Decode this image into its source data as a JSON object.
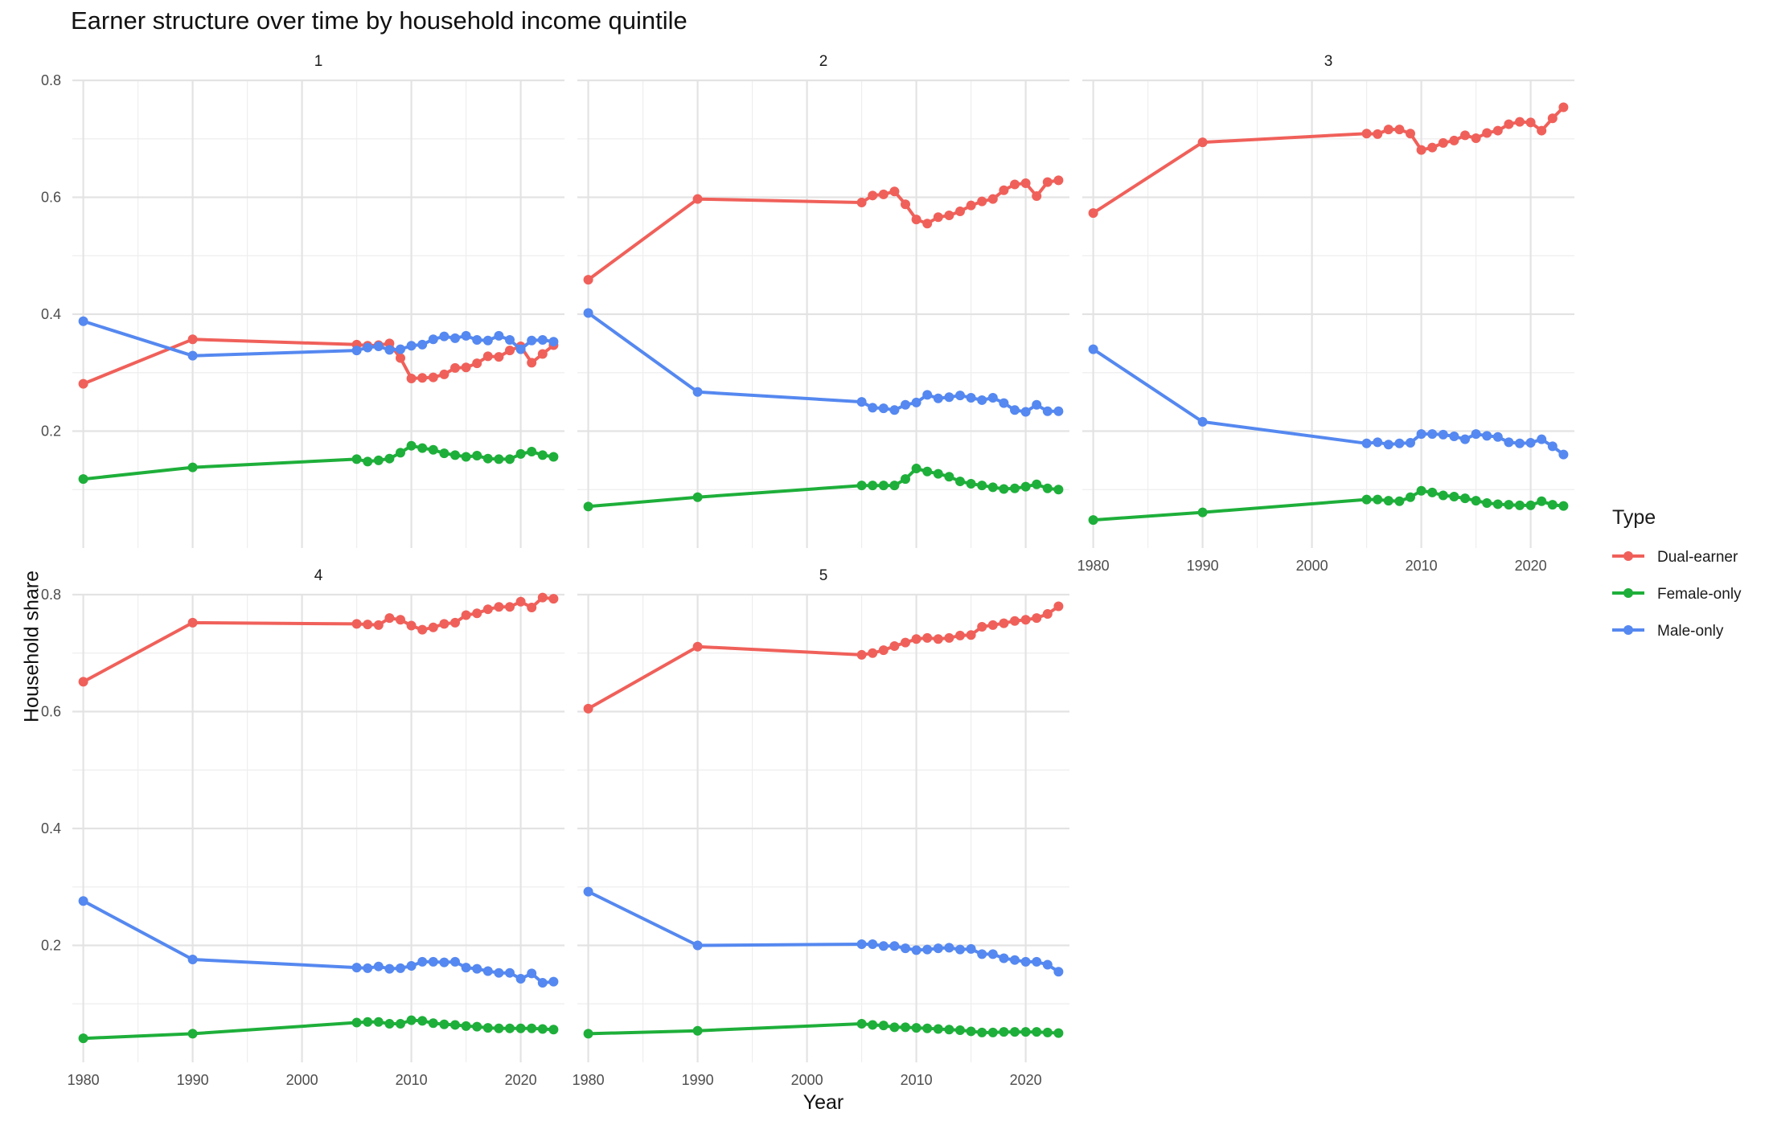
{
  "chart_data": {
    "type": "line",
    "title": "Earner structure over time by household income quintile",
    "xlabel": "Year",
    "ylabel": "Household share",
    "xlim": [
      1979,
      2024
    ],
    "ylim": [
      0.0,
      0.8
    ],
    "x_ticks": [
      1980,
      1990,
      2000,
      2010,
      2020
    ],
    "y_ticks": [
      0.2,
      0.4,
      0.6,
      0.8
    ],
    "grid": true,
    "legend": {
      "title": "Type",
      "position": "right"
    },
    "colors": {
      "Dual-earner": "#F0605A",
      "Female-only": "#1EAF3A",
      "Male-only": "#5588F0"
    },
    "years": [
      1980,
      1990,
      2005,
      2006,
      2007,
      2008,
      2009,
      2010,
      2011,
      2012,
      2013,
      2014,
      2015,
      2016,
      2017,
      2018,
      2019,
      2020,
      2021,
      2022,
      2023
    ],
    "panels": [
      {
        "label": "1",
        "series": [
          {
            "name": "Dual-earner",
            "values": [
              0.281,
              0.357,
              0.348,
              0.346,
              0.347,
              0.35,
              0.325,
              0.29,
              0.291,
              0.292,
              0.297,
              0.308,
              0.309,
              0.316,
              0.328,
              0.327,
              0.338,
              0.345,
              0.317,
              0.332,
              0.347
            ]
          },
          {
            "name": "Female-only",
            "values": [
              0.118,
              0.138,
              0.152,
              0.148,
              0.15,
              0.153,
              0.163,
              0.175,
              0.171,
              0.168,
              0.162,
              0.159,
              0.156,
              0.158,
              0.153,
              0.152,
              0.152,
              0.161,
              0.165,
              0.159,
              0.156
            ]
          },
          {
            "name": "Male-only",
            "values": [
              0.388,
              0.329,
              0.338,
              0.343,
              0.345,
              0.339,
              0.34,
              0.346,
              0.348,
              0.357,
              0.362,
              0.359,
              0.363,
              0.356,
              0.355,
              0.363,
              0.356,
              0.34,
              0.355,
              0.356,
              0.353
            ]
          }
        ]
      },
      {
        "label": "2",
        "series": [
          {
            "name": "Dual-earner",
            "values": [
              0.459,
              0.597,
              0.591,
              0.603,
              0.605,
              0.61,
              0.588,
              0.562,
              0.555,
              0.566,
              0.569,
              0.576,
              0.586,
              0.593,
              0.597,
              0.612,
              0.622,
              0.624,
              0.602,
              0.626,
              0.629
            ]
          },
          {
            "name": "Female-only",
            "values": [
              0.071,
              0.087,
              0.107,
              0.107,
              0.107,
              0.107,
              0.118,
              0.136,
              0.131,
              0.127,
              0.122,
              0.114,
              0.11,
              0.107,
              0.104,
              0.101,
              0.102,
              0.105,
              0.109,
              0.102,
              0.1
            ]
          },
          {
            "name": "Male-only",
            "values": [
              0.402,
              0.267,
              0.25,
              0.24,
              0.239,
              0.236,
              0.245,
              0.249,
              0.262,
              0.256,
              0.258,
              0.261,
              0.257,
              0.253,
              0.257,
              0.248,
              0.236,
              0.233,
              0.245,
              0.234,
              0.234
            ]
          }
        ]
      },
      {
        "label": "3",
        "series": [
          {
            "name": "Dual-earner",
            "values": [
              0.573,
              0.694,
              0.709,
              0.708,
              0.716,
              0.716,
              0.709,
              0.681,
              0.685,
              0.693,
              0.697,
              0.706,
              0.701,
              0.71,
              0.714,
              0.725,
              0.729,
              0.728,
              0.714,
              0.735,
              0.754
            ]
          },
          {
            "name": "Female-only",
            "values": [
              0.048,
              0.061,
              0.083,
              0.083,
              0.081,
              0.08,
              0.087,
              0.098,
              0.095,
              0.09,
              0.088,
              0.085,
              0.081,
              0.077,
              0.075,
              0.074,
              0.073,
              0.073,
              0.08,
              0.074,
              0.072
            ]
          },
          {
            "name": "Male-only",
            "values": [
              0.34,
              0.216,
              0.179,
              0.181,
              0.177,
              0.179,
              0.18,
              0.195,
              0.195,
              0.194,
              0.191,
              0.186,
              0.195,
              0.192,
              0.19,
              0.181,
              0.179,
              0.18,
              0.186,
              0.174,
              0.16
            ]
          }
        ]
      },
      {
        "label": "4",
        "series": [
          {
            "name": "Dual-earner",
            "values": [
              0.651,
              0.752,
              0.75,
              0.749,
              0.748,
              0.76,
              0.757,
              0.747,
              0.74,
              0.744,
              0.75,
              0.752,
              0.765,
              0.768,
              0.775,
              0.779,
              0.779,
              0.788,
              0.778,
              0.795,
              0.793
            ]
          },
          {
            "name": "Female-only",
            "values": [
              0.041,
              0.049,
              0.068,
              0.069,
              0.069,
              0.066,
              0.066,
              0.072,
              0.071,
              0.067,
              0.065,
              0.064,
              0.062,
              0.061,
              0.059,
              0.058,
              0.058,
              0.058,
              0.058,
              0.057,
              0.056
            ]
          },
          {
            "name": "Male-only",
            "values": [
              0.276,
              0.176,
              0.162,
              0.161,
              0.164,
              0.16,
              0.161,
              0.165,
              0.172,
              0.172,
              0.171,
              0.172,
              0.162,
              0.16,
              0.156,
              0.153,
              0.153,
              0.143,
              0.152,
              0.136,
              0.138
            ]
          }
        ]
      },
      {
        "label": "5",
        "series": [
          {
            "name": "Dual-earner",
            "values": [
              0.605,
              0.711,
              0.697,
              0.7,
              0.705,
              0.712,
              0.718,
              0.724,
              0.726,
              0.724,
              0.726,
              0.73,
              0.731,
              0.745,
              0.748,
              0.751,
              0.755,
              0.757,
              0.76,
              0.767,
              0.78
            ]
          },
          {
            "name": "Female-only",
            "values": [
              0.049,
              0.054,
              0.066,
              0.064,
              0.063,
              0.06,
              0.06,
              0.059,
              0.058,
              0.057,
              0.056,
              0.055,
              0.053,
              0.051,
              0.051,
              0.052,
              0.052,
              0.052,
              0.052,
              0.051,
              0.05
            ]
          },
          {
            "name": "Male-only",
            "values": [
              0.292,
              0.2,
              0.202,
              0.202,
              0.199,
              0.199,
              0.195,
              0.192,
              0.193,
              0.195,
              0.196,
              0.193,
              0.194,
              0.185,
              0.185,
              0.178,
              0.175,
              0.172,
              0.172,
              0.167,
              0.155
            ]
          }
        ]
      }
    ]
  }
}
